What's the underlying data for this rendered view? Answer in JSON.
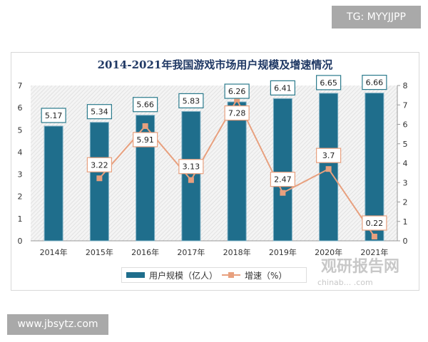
{
  "badges": {
    "top": "TG: MYYJJPP",
    "bottom": "www.jbsytz.com"
  },
  "watermark": {
    "name": "观研报告网",
    "site": "chinab... .com"
  },
  "chart_data": {
    "type": "bar+line",
    "title": "2014-2021年我国游戏市场用户规模及增速情况",
    "categories": [
      "2014年",
      "2015年",
      "2016年",
      "2017年",
      "2018年",
      "2019年",
      "2020年",
      "2021年"
    ],
    "series": [
      {
        "name": "用户规模（亿人）",
        "type": "bar",
        "axis": "left",
        "values": [
          5.17,
          5.34,
          5.66,
          5.83,
          6.26,
          6.41,
          6.65,
          6.66
        ],
        "color": "#1f6e8c"
      },
      {
        "name": "增速（%）",
        "type": "line",
        "axis": "right",
        "values": [
          null,
          3.22,
          5.91,
          3.13,
          7.28,
          2.47,
          3.7,
          0.22
        ],
        "color": "#e8a07e"
      }
    ],
    "left_axis": {
      "ylim": [
        0,
        7
      ],
      "ticks": [
        "0",
        "1",
        "2",
        "3",
        "4",
        "5",
        "6",
        "7"
      ]
    },
    "right_axis": {
      "ylim": [
        0,
        8
      ],
      "ticks": [
        "0",
        "1",
        "2",
        "3",
        "4",
        "5",
        "6",
        "7",
        "8"
      ]
    },
    "legend": "bottom"
  }
}
